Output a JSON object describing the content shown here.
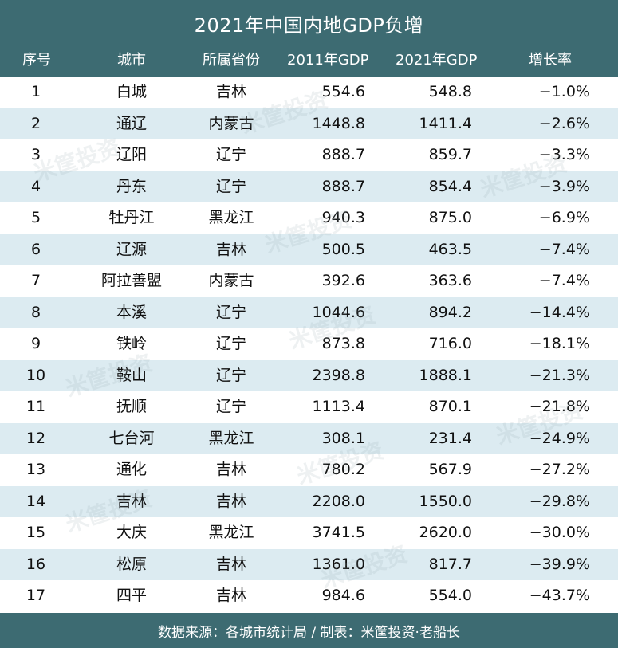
{
  "header": {
    "title": "2021年中国内地GDP负增"
  },
  "columns": {
    "rank": "序号",
    "city": "城市",
    "province": "所属省份",
    "gdp_2011": "2011年GDP",
    "gdp_2021": "2021年GDP",
    "change": "增长率"
  },
  "chart_data": {
    "type": "table",
    "title": "2021年中国内地GDP负增",
    "columns": [
      "序号",
      "城市",
      "所属省份",
      "2011年GDP",
      "2021年GDP",
      "增长率"
    ],
    "rows": [
      {
        "rank": "1",
        "city": "白城",
        "province": "吉林",
        "gdp_2011": "554.6",
        "gdp_2021": "548.8",
        "change": "−1.0%"
      },
      {
        "rank": "2",
        "city": "通辽",
        "province": "内蒙古",
        "gdp_2011": "1448.8",
        "gdp_2021": "1411.4",
        "change": "−2.6%"
      },
      {
        "rank": "3",
        "city": "辽阳",
        "province": "辽宁",
        "gdp_2011": "888.7",
        "gdp_2021": "859.7",
        "change": "−3.3%"
      },
      {
        "rank": "4",
        "city": "丹东",
        "province": "辽宁",
        "gdp_2011": "888.7",
        "gdp_2021": "854.4",
        "change": "−3.9%"
      },
      {
        "rank": "5",
        "city": "牡丹江",
        "province": "黑龙江",
        "gdp_2011": "940.3",
        "gdp_2021": "875.0",
        "change": "−6.9%"
      },
      {
        "rank": "6",
        "city": "辽源",
        "province": "吉林",
        "gdp_2011": "500.5",
        "gdp_2021": "463.5",
        "change": "−7.4%"
      },
      {
        "rank": "7",
        "city": "阿拉善盟",
        "province": "内蒙古",
        "gdp_2011": "392.6",
        "gdp_2021": "363.6",
        "change": "−7.4%"
      },
      {
        "rank": "8",
        "city": "本溪",
        "province": "辽宁",
        "gdp_2011": "1044.6",
        "gdp_2021": "894.2",
        "change": "−14.4%"
      },
      {
        "rank": "9",
        "city": "铁岭",
        "province": "辽宁",
        "gdp_2011": "873.8",
        "gdp_2021": "716.0",
        "change": "−18.1%"
      },
      {
        "rank": "10",
        "city": "鞍山",
        "province": "辽宁",
        "gdp_2011": "2398.8",
        "gdp_2021": "1888.1",
        "change": "−21.3%"
      },
      {
        "rank": "11",
        "city": "抚顺",
        "province": "辽宁",
        "gdp_2011": "1113.4",
        "gdp_2021": "870.1",
        "change": "−21.8%"
      },
      {
        "rank": "12",
        "city": "七台河",
        "province": "黑龙江",
        "gdp_2011": "308.1",
        "gdp_2021": "231.4",
        "change": "−24.9%"
      },
      {
        "rank": "13",
        "city": "通化",
        "province": "吉林",
        "gdp_2011": "780.2",
        "gdp_2021": "567.9",
        "change": "−27.2%"
      },
      {
        "rank": "14",
        "city": "吉林",
        "province": "吉林",
        "gdp_2011": "2208.0",
        "gdp_2021": "1550.0",
        "change": "−29.8%"
      },
      {
        "rank": "15",
        "city": "大庆",
        "province": "黑龙江",
        "gdp_2011": "3741.5",
        "gdp_2021": "2620.0",
        "change": "−30.0%"
      },
      {
        "rank": "16",
        "city": "松原",
        "province": "吉林",
        "gdp_2011": "1361.0",
        "gdp_2021": "817.7",
        "change": "−39.9%"
      },
      {
        "rank": "17",
        "city": "四平",
        "province": "吉林",
        "gdp_2011": "984.6",
        "gdp_2021": "554.0",
        "change": "−43.7%"
      }
    ]
  },
  "footer": {
    "source": "数据来源：各城市统计局 / 制表：米筐投资·老船长"
  },
  "watermark": {
    "text": "米筐投资"
  },
  "colors": {
    "header_bg": "#3d6b72",
    "stripe": "#dcebf1",
    "text": "#111111"
  }
}
